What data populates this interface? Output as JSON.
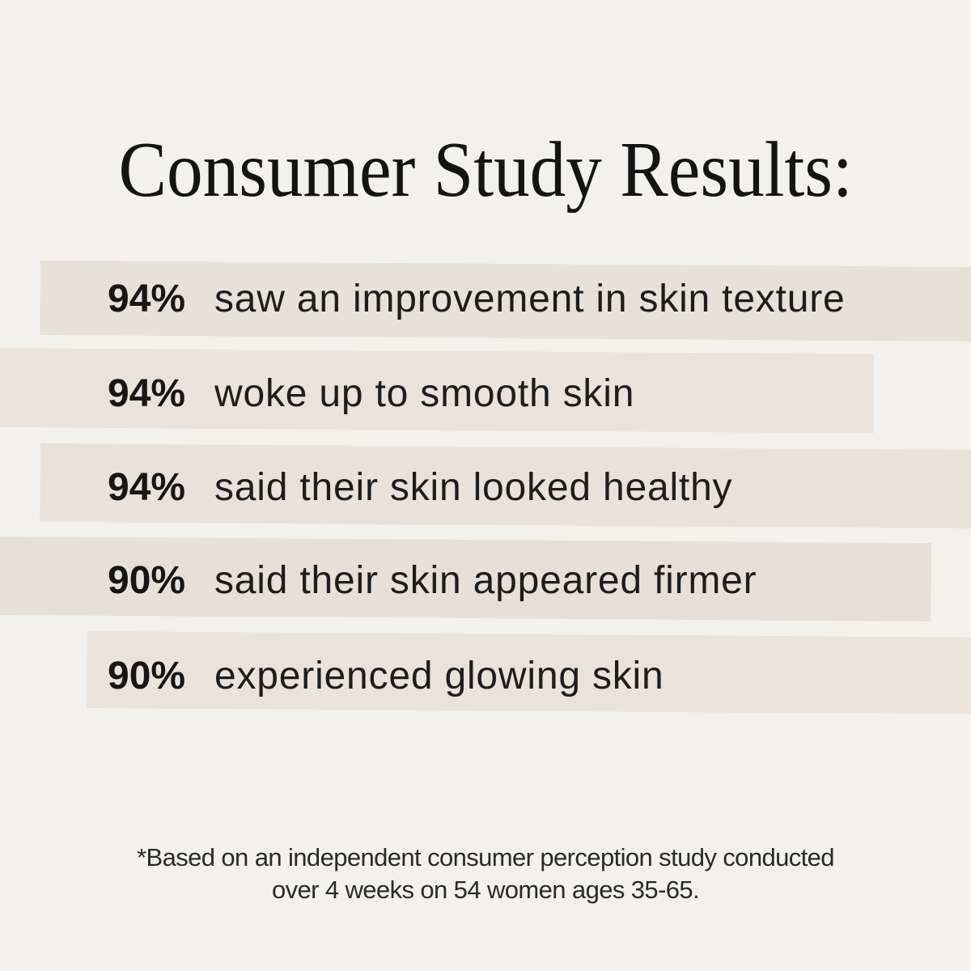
{
  "title": "Consumer Study Results:",
  "rows": [
    {
      "percent": "94%",
      "description": "saw an improvement in skin texture"
    },
    {
      "percent": "94%",
      "description": "woke up to smooth skin"
    },
    {
      "percent": "94%",
      "description": "said their skin looked healthy"
    },
    {
      "percent": "90%",
      "description": "said their skin appeared firmer"
    },
    {
      "percent": "90%",
      "description": "experienced glowing skin"
    }
  ],
  "footnote": {
    "line1": "*Based on an independent consumer perception study conducted",
    "line2": "over 4 weeks on 54 women ages 35-65."
  },
  "colors": {
    "background": "#f3f1ee",
    "band_light": "#e9e3dc",
    "band_dark": "#e6e0d9",
    "text": "#1a1a1a"
  },
  "chart_data": {
    "type": "table",
    "title": "Consumer Study Results:",
    "categories": [
      "saw an improvement in skin texture",
      "woke up to smooth skin",
      "said their skin looked healthy",
      "said their skin appeared firmer",
      "experienced glowing skin"
    ],
    "values": [
      94,
      94,
      94,
      90,
      90
    ],
    "unit": "%",
    "footnote": "*Based on an independent consumer perception study conducted over 4 weeks on 54 women ages 35-65."
  }
}
